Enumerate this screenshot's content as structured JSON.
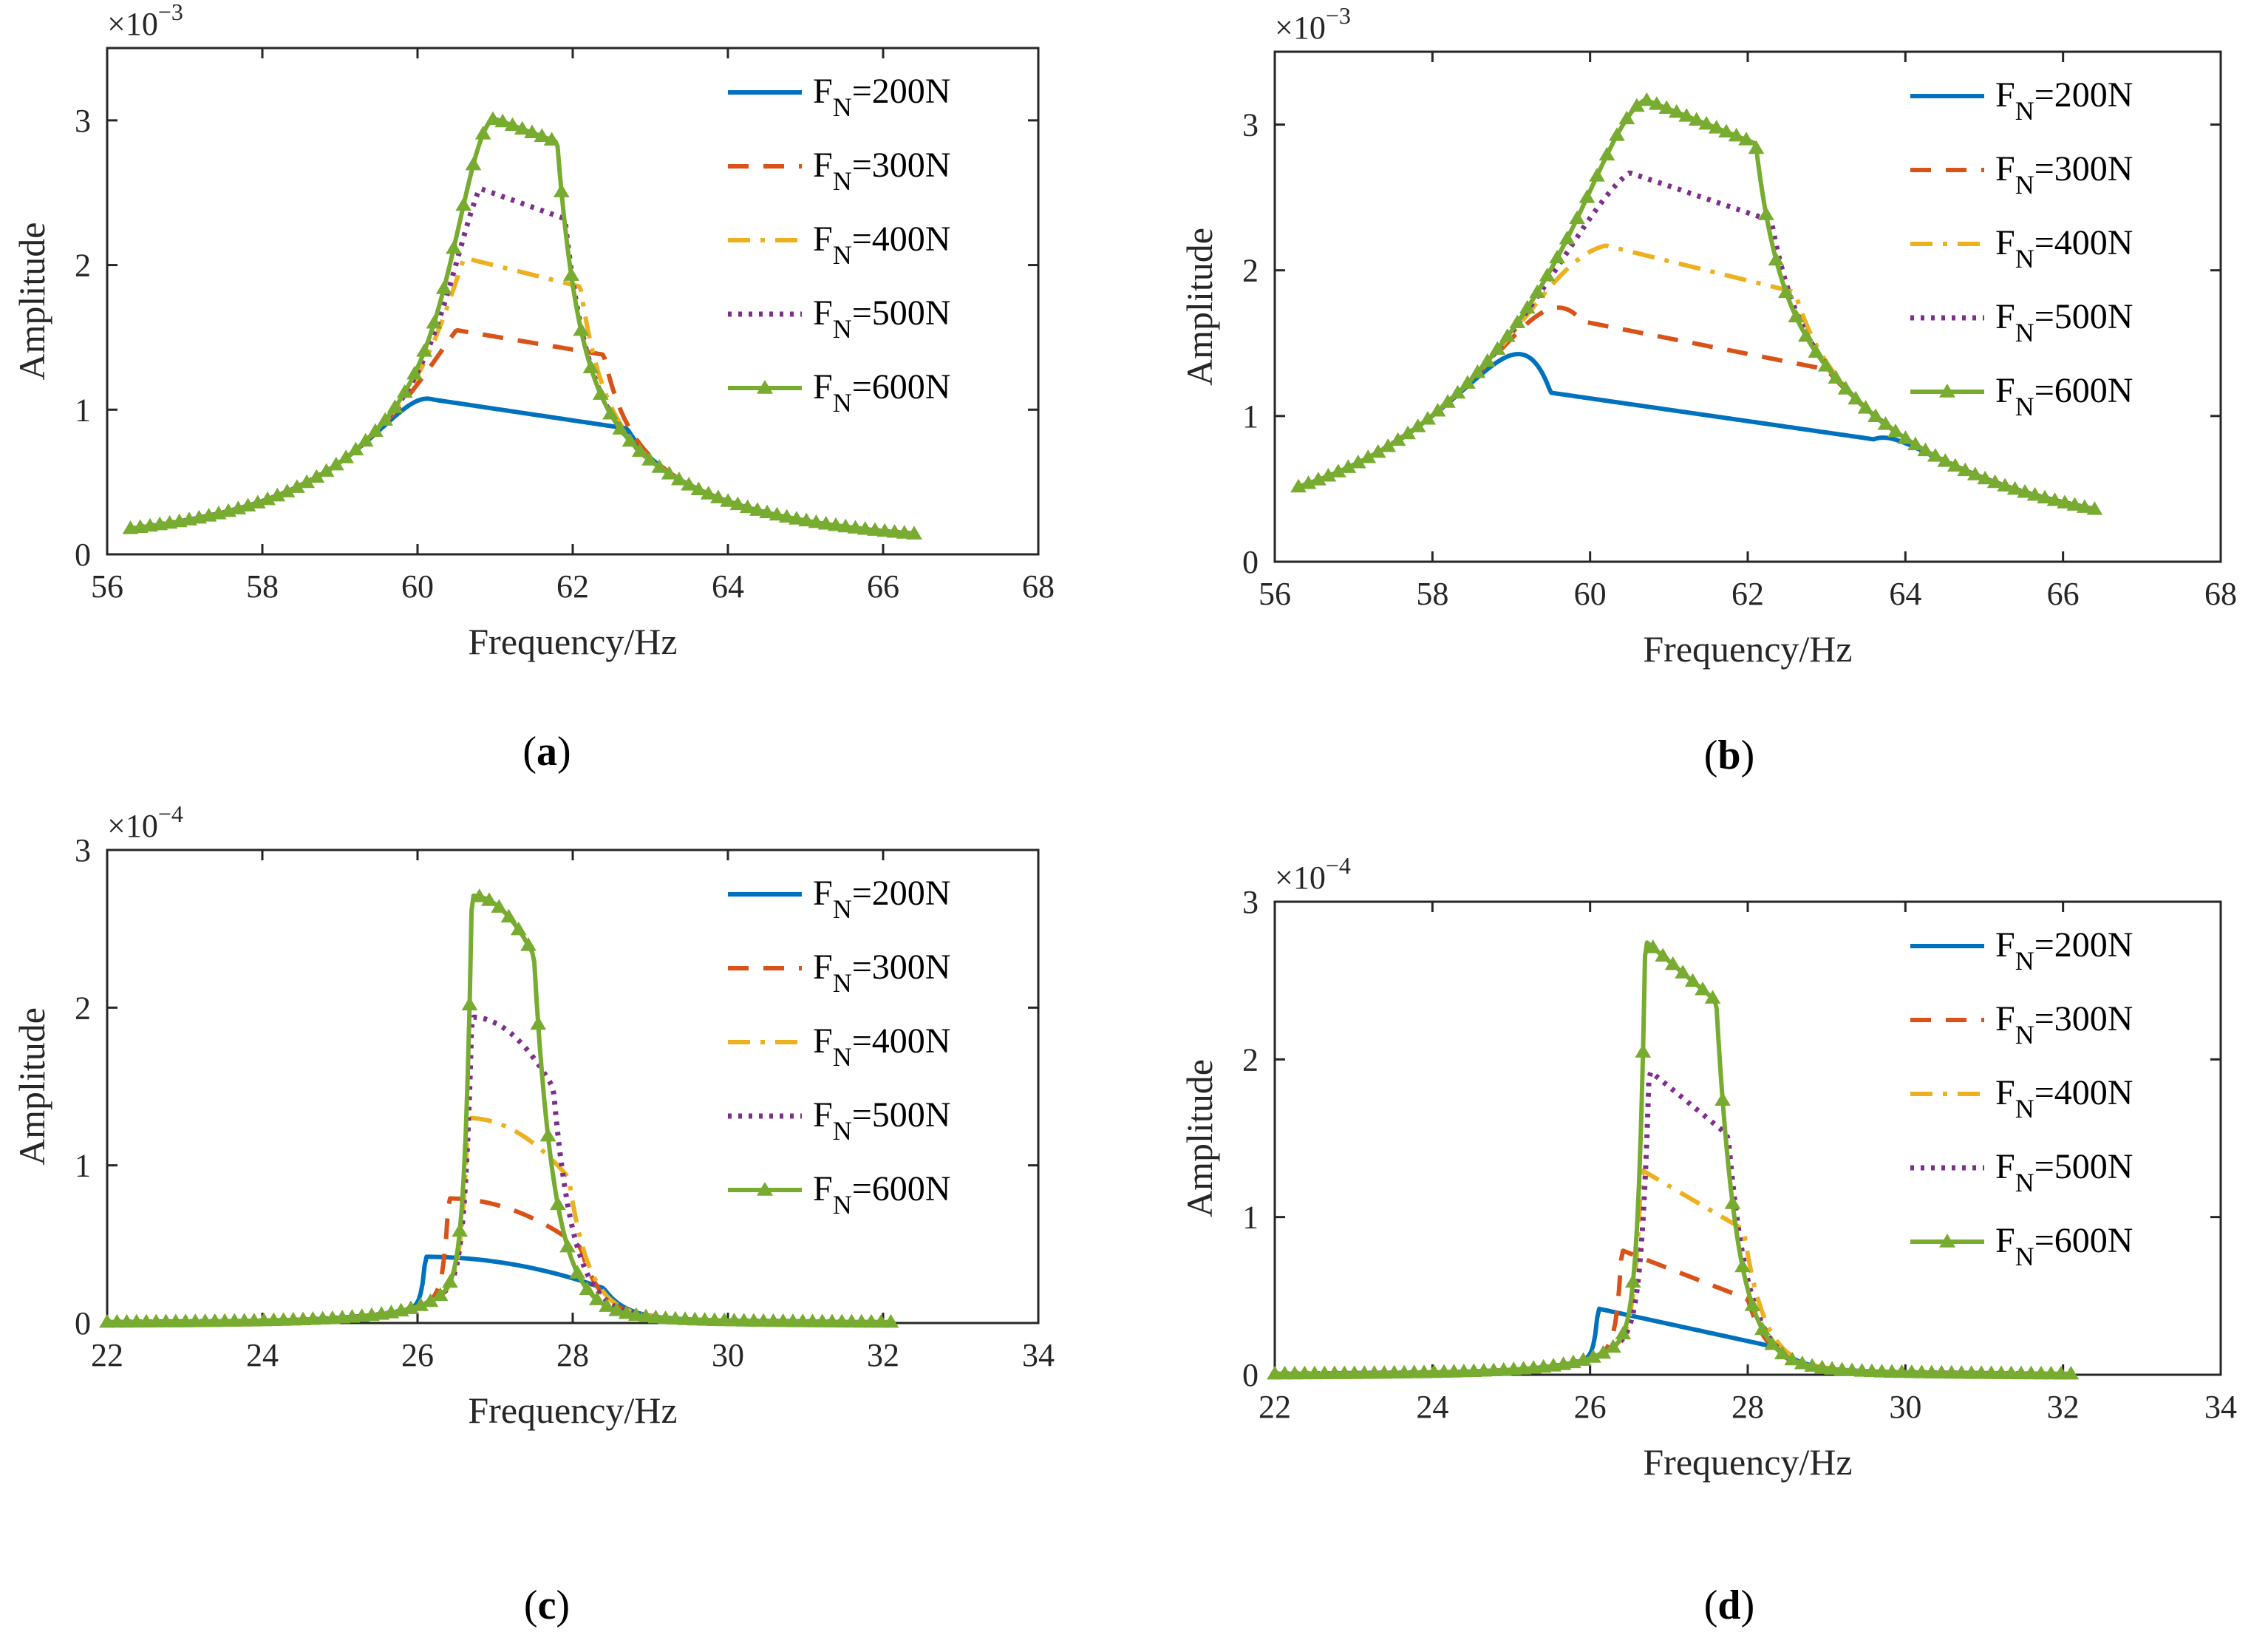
{
  "chart_data": [
    {
      "type": "line",
      "caption": {
        "open": "(",
        "letter": "a",
        "close": ")"
      },
      "xlabel": "Frequency/Hz",
      "ylabel": "Amplitude",
      "exponent": {
        "prefix": "×10",
        "power": "−3"
      },
      "xlim": [
        56,
        68
      ],
      "ylim": [
        0,
        3.5
      ],
      "xticks": [
        "56",
        "58",
        "60",
        "62",
        "64",
        "66",
        "68"
      ],
      "yticks": [
        "0",
        "1",
        "2",
        "3"
      ],
      "legend_position": "top-right",
      "curve": {
        "x0": 56.3,
        "x1": 66.4,
        "f0": 61.0,
        "base": 1.6,
        "gamma": 1.6,
        "floor": 0.012
      },
      "series": [
        {
          "name": "F_N=200N",
          "label_main": "F",
          "label_sub": "N",
          "label_rest": "=200N",
          "color": "#0072BD",
          "style": "solid",
          "jump": [
            60.2,
            62.7
          ],
          "plateau": [
            1.07,
            0.87
          ]
        },
        {
          "name": "F_N=300N",
          "label_main": "F",
          "label_sub": "N",
          "label_rest": "=300N",
          "color": "#D95319",
          "style": "dashed",
          "jump": [
            60.5,
            62.4
          ],
          "plateau": [
            1.55,
            1.38
          ]
        },
        {
          "name": "F_N=400N",
          "label_main": "F",
          "label_sub": "N",
          "label_rest": "=400N",
          "color": "#EDB120",
          "style": "dashdot",
          "jump": [
            60.6,
            62.1
          ],
          "plateau": [
            2.05,
            1.85
          ]
        },
        {
          "name": "F_N=500N",
          "label_main": "F",
          "label_sub": "N",
          "label_rest": "=500N",
          "color": "#7E2F8E",
          "style": "dotted",
          "jump": [
            60.8,
            61.9
          ],
          "plateau": [
            2.53,
            2.32
          ]
        },
        {
          "name": "F_N=600N",
          "label_main": "F",
          "label_sub": "N",
          "label_rest": "=600N",
          "color": "#77AC30",
          "style": "solid",
          "marker": "triangle",
          "jump": [
            61.0,
            61.8
          ],
          "plateau": [
            3.01,
            2.85
          ]
        }
      ]
    },
    {
      "type": "line",
      "caption": {
        "open": "(",
        "letter": "b",
        "close": ")"
      },
      "xlabel": "Frequency/Hz",
      "ylabel": "Amplitude",
      "exponent": {
        "prefix": "×10",
        "power": "−3"
      },
      "xlim": [
        56,
        68
      ],
      "ylim": [
        0,
        3.5
      ],
      "xticks": [
        "56",
        "58",
        "60",
        "62",
        "64",
        "66",
        "68"
      ],
      "yticks": [
        "0",
        "1",
        "2",
        "3"
      ],
      "legend_position": "top-right",
      "curve": {
        "x0": 56.3,
        "x1": 66.4,
        "f0": 60.8,
        "base": 2.6,
        "gamma": 2.2,
        "floor": 0.012
      },
      "series": [
        {
          "name": "F_N=200N",
          "label_main": "F",
          "label_sub": "N",
          "label_rest": "=200N",
          "color": "#0072BD",
          "style": "solid",
          "jump": [
            59.5,
            63.6
          ],
          "plateau": [
            1.16,
            0.84
          ]
        },
        {
          "name": "F_N=300N",
          "label_main": "F",
          "label_sub": "N",
          "label_rest": "=300N",
          "color": "#D95319",
          "style": "dashed",
          "jump": [
            59.9,
            63.0
          ],
          "plateau": [
            1.65,
            1.32
          ]
        },
        {
          "name": "F_N=400N",
          "label_main": "F",
          "label_sub": "N",
          "label_rest": "=400N",
          "color": "#EDB120",
          "style": "dashdot",
          "jump": [
            60.2,
            62.6
          ],
          "plateau": [
            2.17,
            1.85
          ]
        },
        {
          "name": "F_N=500N",
          "label_main": "F",
          "label_sub": "N",
          "label_rest": "=500N",
          "color": "#7E2F8E",
          "style": "dotted",
          "jump": [
            60.5,
            62.3
          ],
          "plateau": [
            2.67,
            2.34
          ]
        },
        {
          "name": "F_N=600N",
          "label_main": "F",
          "label_sub": "N",
          "label_rest": "=600N",
          "color": "#77AC30",
          "style": "solid",
          "marker": "triangle",
          "jump": [
            60.7,
            62.1
          ],
          "plateau": [
            3.17,
            2.87
          ]
        }
      ]
    },
    {
      "type": "line",
      "caption": {
        "open": "(",
        "letter": "c",
        "close": ")"
      },
      "xlabel": "Frequency/Hz",
      "ylabel": "Amplitude",
      "exponent": {
        "prefix": "×10",
        "power": "−4"
      },
      "xlim": [
        22,
        34
      ],
      "ylim": [
        0,
        3
      ],
      "xticks": [
        "22",
        "24",
        "26",
        "28",
        "30",
        "32",
        "34"
      ],
      "yticks": [
        "0",
        "1",
        "2",
        "3"
      ],
      "legend_position": "top-right",
      "curve": {
        "x0": 22.0,
        "x1": 32.1,
        "f0": 27.0,
        "base": 0.45,
        "gamma": 0.55,
        "floor": 0.0
      },
      "series": [
        {
          "name": "F_N=200N",
          "label_main": "F",
          "label_sub": "N",
          "label_rest": "=200N",
          "color": "#0072BD",
          "style": "solid",
          "jump": [
            26.1,
            28.4
          ],
          "plateau": [
            0.42,
            0.22
          ],
          "shape": "concave"
        },
        {
          "name": "F_N=300N",
          "label_main": "F",
          "label_sub": "N",
          "label_rest": "=300N",
          "color": "#D95319",
          "style": "dashed",
          "jump": [
            26.4,
            28.1
          ],
          "plateau": [
            0.79,
            0.48
          ],
          "shape": "concave"
        },
        {
          "name": "F_N=400N",
          "label_main": "F",
          "label_sub": "N",
          "label_rest": "=400N",
          "color": "#EDB120",
          "style": "dashdot",
          "jump": [
            26.65,
            27.95
          ],
          "plateau": [
            1.3,
            0.92
          ],
          "shape": "concave"
        },
        {
          "name": "F_N=500N",
          "label_main": "F",
          "label_sub": "N",
          "label_rest": "=500N",
          "color": "#7E2F8E",
          "style": "dotted",
          "jump": [
            26.7,
            27.75
          ],
          "plateau": [
            1.94,
            1.49
          ],
          "shape": "concave"
        },
        {
          "name": "F_N=600N",
          "label_main": "F",
          "label_sub": "N",
          "label_rest": "=600N",
          "color": "#77AC30",
          "style": "solid",
          "marker": "triangle",
          "jump": [
            26.7,
            27.5
          ],
          "plateau": [
            2.71,
            2.33
          ],
          "shape": "concave"
        }
      ]
    },
    {
      "type": "line",
      "caption": {
        "open": "(",
        "letter": "d",
        "close": ")"
      },
      "xlabel": "Frequency/Hz",
      "ylabel": "Amplitude",
      "exponent": {
        "prefix": "×10",
        "power": "−4"
      },
      "xlim": [
        22,
        34
      ],
      "ylim": [
        0,
        3
      ],
      "xticks": [
        "22",
        "24",
        "26",
        "28",
        "30",
        "32",
        "34"
      ],
      "yticks": [
        "0",
        "1",
        "2",
        "3"
      ],
      "legend_position": "top-right",
      "curve": {
        "x0": 22.0,
        "x1": 32.1,
        "f0": 27.0,
        "base": 0.45,
        "gamma": 0.55,
        "floor": 0.0
      },
      "series": [
        {
          "name": "F_N=200N",
          "label_main": "F",
          "label_sub": "N",
          "label_rest": "=200N",
          "color": "#0072BD",
          "style": "solid",
          "jump": [
            26.1,
            28.4
          ],
          "plateau": [
            0.42,
            0.17
          ]
        },
        {
          "name": "F_N=300N",
          "label_main": "F",
          "label_sub": "N",
          "label_rest": "=300N",
          "color": "#D95319",
          "style": "dashed",
          "jump": [
            26.4,
            28.0
          ],
          "plateau": [
            0.79,
            0.48
          ]
        },
        {
          "name": "F_N=400N",
          "label_main": "F",
          "label_sub": "N",
          "label_rest": "=400N",
          "color": "#EDB120",
          "style": "dashdot",
          "jump": [
            26.65,
            27.95
          ],
          "plateau": [
            1.3,
            0.92
          ]
        },
        {
          "name": "F_N=500N",
          "label_main": "F",
          "label_sub": "N",
          "label_rest": "=500N",
          "color": "#7E2F8E",
          "style": "dotted",
          "jump": [
            26.75,
            27.75
          ],
          "plateau": [
            1.93,
            1.52
          ]
        },
        {
          "name": "F_N=600N",
          "label_main": "F",
          "label_sub": "N",
          "label_rest": "=600N",
          "color": "#77AC30",
          "style": "solid",
          "marker": "triangle",
          "jump": [
            26.7,
            27.6
          ],
          "plateau": [
            2.75,
            2.37
          ]
        }
      ]
    }
  ]
}
